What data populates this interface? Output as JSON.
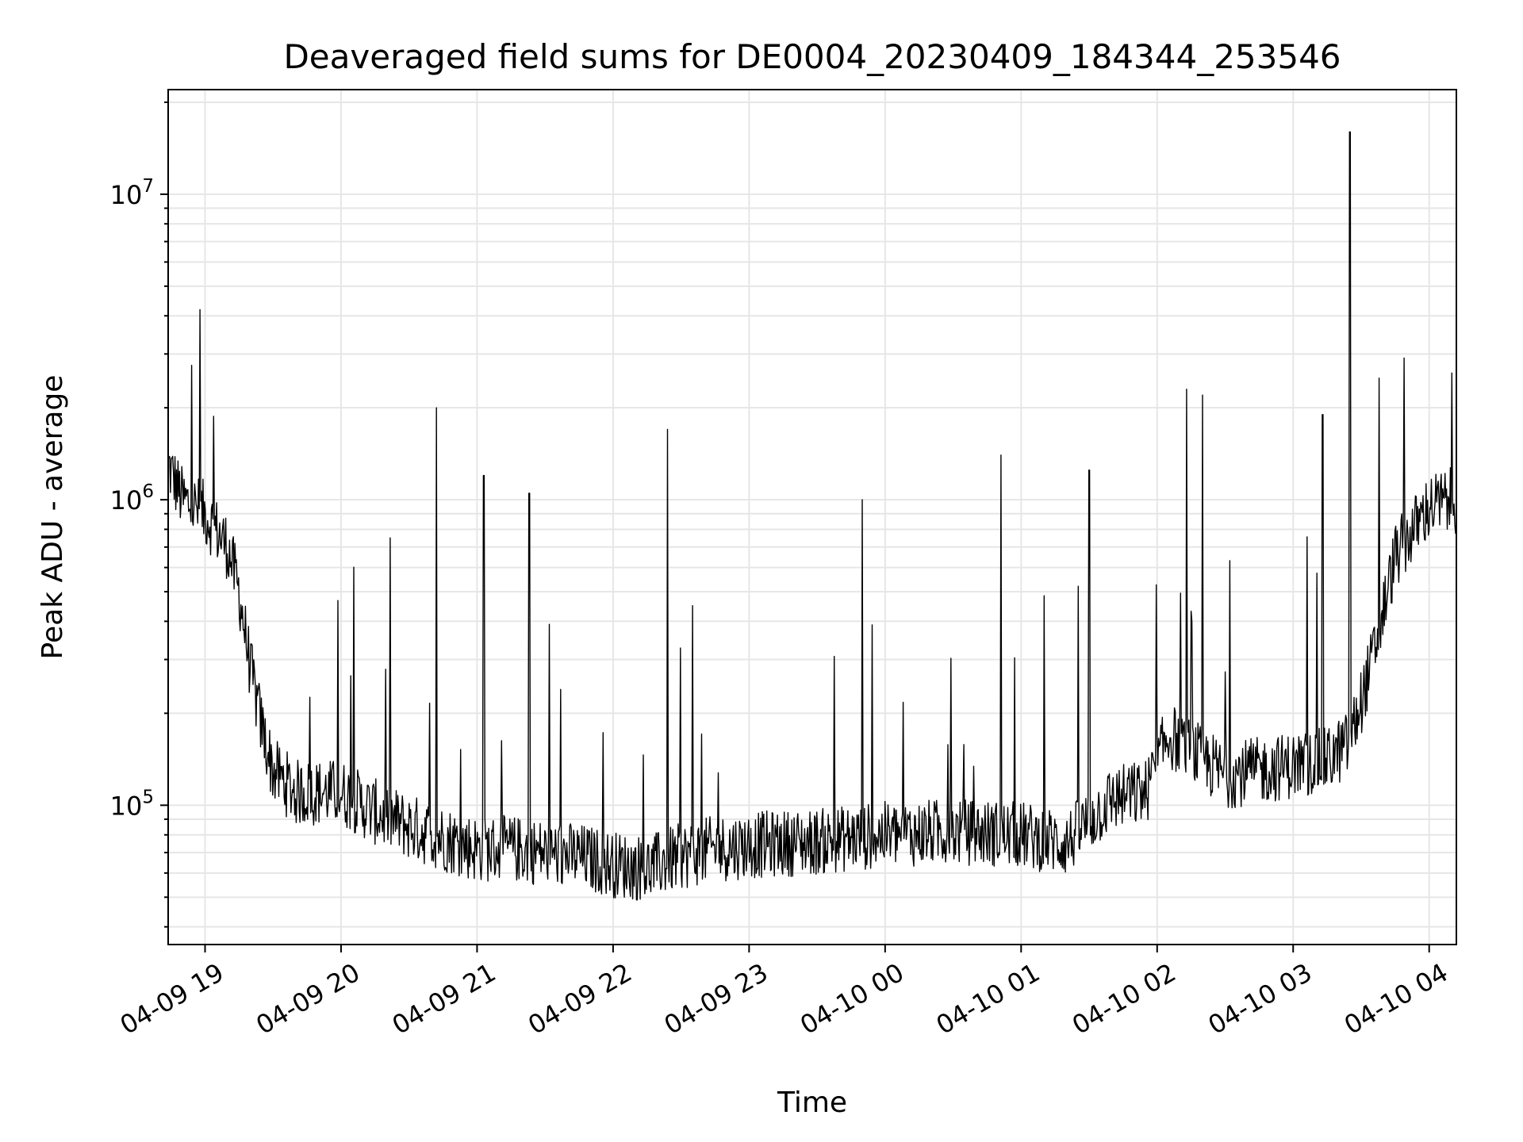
{
  "chart_data": {
    "type": "line",
    "title": "Deaveraged field sums for DE0004_20230409_184344_253546",
    "xlabel": "Time",
    "ylabel": "Peak ADU - average",
    "yscale": "log",
    "ylim": [
      35000,
      22000000
    ],
    "xlim": [
      "2023-04-09 18:43:44",
      "2023-04-10 04:12:00"
    ],
    "grid": true,
    "legend": "none",
    "line_color": "#000000",
    "grid_color": "#e6e6e6",
    "x_ticks": [
      {
        "t": "2023-04-09 19:00",
        "label": "04-09 19"
      },
      {
        "t": "2023-04-09 20:00",
        "label": "04-09 20"
      },
      {
        "t": "2023-04-09 21:00",
        "label": "04-09 21"
      },
      {
        "t": "2023-04-09 22:00",
        "label": "04-09 22"
      },
      {
        "t": "2023-04-09 23:00",
        "label": "04-09 23"
      },
      {
        "t": "2023-04-10 00:00",
        "label": "04-10 00"
      },
      {
        "t": "2023-04-10 01:00",
        "label": "04-10 01"
      },
      {
        "t": "2023-04-10 02:00",
        "label": "04-10 02"
      },
      {
        "t": "2023-04-10 03:00",
        "label": "04-10 03"
      },
      {
        "t": "2023-04-10 04:00",
        "label": "04-10 04"
      }
    ],
    "y_ticks": [
      {
        "value": 100000,
        "base": "10",
        "exp": "5"
      },
      {
        "value": 1000000,
        "base": "10",
        "exp": "6"
      },
      {
        "value": 10000000,
        "base": "10",
        "exp": "7"
      }
    ],
    "series": [
      {
        "x": [
          "2023-04-09 18:43:44",
          "2023-04-09 18:50",
          "2023-04-09 19:00",
          "2023-04-09 19:10",
          "2023-04-09 19:15",
          "2023-04-09 19:20",
          "2023-04-09 19:25",
          "2023-04-09 19:30",
          "2023-04-09 19:40",
          "2023-04-09 19:50",
          "2023-04-09 20:00",
          "2023-04-09 20:15",
          "2023-04-09 20:30",
          "2023-04-09 20:45",
          "2023-04-09 21:00",
          "2023-04-09 21:15",
          "2023-04-09 21:30",
          "2023-04-09 21:45",
          "2023-04-09 22:00",
          "2023-04-09 22:15",
          "2023-04-09 22:30",
          "2023-04-09 22:45",
          "2023-04-09 23:00",
          "2023-04-09 23:30",
          "2023-04-10 00:00",
          "2023-04-10 00:30",
          "2023-04-10 01:00",
          "2023-04-10 01:20",
          "2023-04-10 01:40",
          "2023-04-10 01:55",
          "2023-04-10 02:05",
          "2023-04-10 02:30",
          "2023-04-10 03:00",
          "2023-04-10 03:15",
          "2023-04-10 03:25",
          "2023-04-10 03:35",
          "2023-04-10 03:45",
          "2023-04-10 04:00",
          "2023-04-10 04:12"
        ],
        "y": [
          1300000,
          1000000,
          900000,
          700000,
          500000,
          280000,
          180000,
          130000,
          110000,
          110000,
          110000,
          95000,
          85000,
          78000,
          72000,
          72000,
          70000,
          68000,
          64000,
          62000,
          68000,
          72000,
          74000,
          76000,
          80000,
          82000,
          80000,
          75000,
          105000,
          110000,
          170000,
          125000,
          135000,
          140000,
          160000,
          300000,
          650000,
          950000,
          1000000
        ],
        "spikes": [
          {
            "t": "2023-04-09 20:42",
            "y": 2000000
          },
          {
            "t": "2023-04-09 21:03",
            "y": 1200000
          },
          {
            "t": "2023-04-09 21:23",
            "y": 1050000
          },
          {
            "t": "2023-04-09 22:24",
            "y": 1700000
          },
          {
            "t": "2023-04-09 22:35",
            "y": 450000
          },
          {
            "t": "2023-04-09 23:50",
            "y": 1000000
          },
          {
            "t": "2023-04-10 00:51",
            "y": 1400000
          },
          {
            "t": "2023-04-10 01:30",
            "y": 1250000
          },
          {
            "t": "2023-04-10 02:13",
            "y": 2300000
          },
          {
            "t": "2023-04-10 02:20",
            "y": 2200000
          },
          {
            "t": "2023-04-10 03:13",
            "y": 1900000
          },
          {
            "t": "2023-04-10 03:25",
            "y": 16000000
          },
          {
            "t": "2023-04-10 03:38",
            "y": 2500000
          },
          {
            "t": "2023-04-10 04:10",
            "y": 2600000
          }
        ]
      }
    ]
  }
}
